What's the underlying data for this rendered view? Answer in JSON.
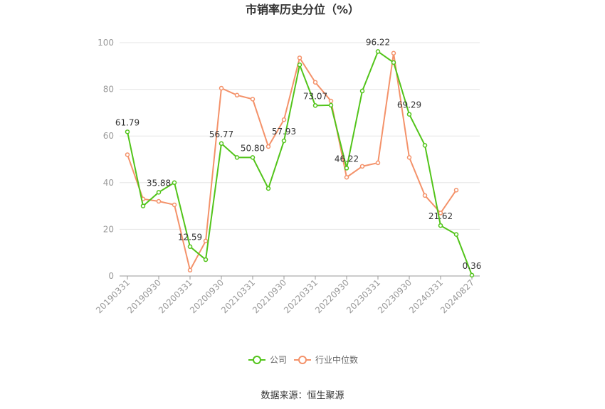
{
  "chart_data": {
    "type": "line",
    "title": "市销率历史分位（%）",
    "source": "数据来源：恒生聚源",
    "ylim": [
      0,
      100
    ],
    "yticks": [
      "0",
      "20",
      "40",
      "60",
      "80",
      "100"
    ],
    "xtick_labels": [
      "20190331",
      "20190930",
      "20200331",
      "20200930",
      "20210331",
      "20210930",
      "20220331",
      "20220930",
      "20230331",
      "20230930",
      "20240331",
      "20240827"
    ],
    "grid": true,
    "legend_position": "bottom",
    "colors": {
      "company": "#52c41a",
      "industry": "#f4926a"
    },
    "series": [
      {
        "name": "公司",
        "values": [
          61.79,
          30,
          35.88,
          40,
          12.59,
          7,
          56.77,
          50.8,
          50.8,
          37.5,
          57.93,
          90.5,
          73.07,
          73.2,
          46.22,
          79.3,
          96.22,
          91.5,
          69.29,
          56,
          21.62,
          17.8,
          0.36
        ],
        "labels": [
          "61.79",
          "",
          "35.88",
          "",
          "12.59",
          "",
          "56.77",
          "",
          "50.80",
          "",
          "57.93",
          "",
          "73.07",
          "",
          "46.22",
          "",
          "96.22",
          "",
          "69.29",
          "",
          "21.62",
          "",
          "0.36"
        ]
      },
      {
        "name": "行业中位数",
        "values": [
          52,
          33,
          32,
          30.5,
          2.5,
          15,
          80.5,
          77.5,
          75.8,
          55.5,
          67,
          93.5,
          83,
          75,
          42.3,
          47,
          48.5,
          95.5,
          50.8,
          34.5,
          27,
          36.8,
          null
        ]
      }
    ]
  }
}
